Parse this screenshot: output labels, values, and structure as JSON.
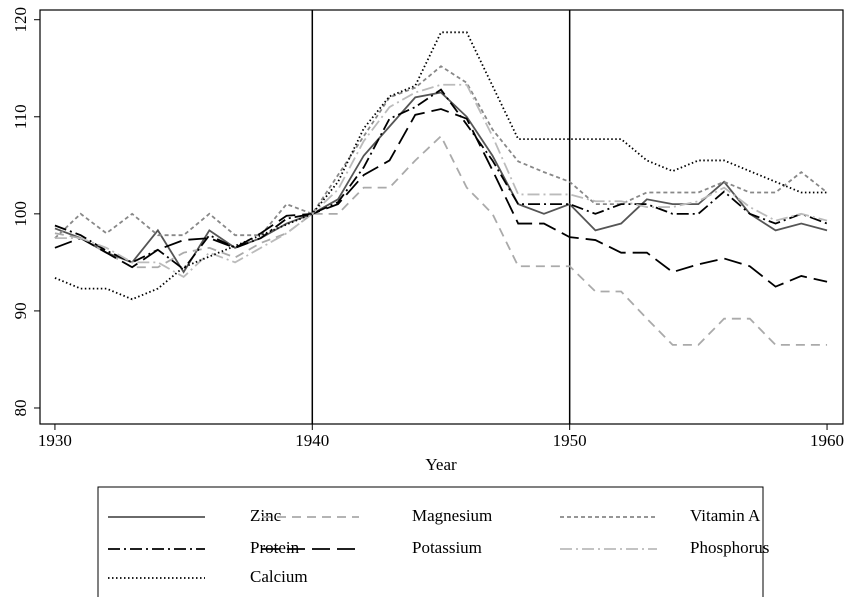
{
  "chart_data": {
    "type": "line",
    "x_label": "Year",
    "x": [
      1930,
      1931,
      1932,
      1933,
      1934,
      1935,
      1936,
      1937,
      1938,
      1939,
      1940,
      1941,
      1942,
      1943,
      1944,
      1945,
      1946,
      1947,
      1948,
      1949,
      1950,
      1951,
      1952,
      1953,
      1954,
      1955,
      1956,
      1957,
      1958,
      1959,
      1960
    ],
    "xlim": [
      1929.42,
      1960.62
    ],
    "xticks": [
      1930,
      1940,
      1950,
      1960
    ],
    "ylim": [
      78.35,
      121
    ],
    "yticks": [
      80,
      90,
      100,
      110,
      120
    ],
    "vlines": [
      1940,
      1950
    ],
    "legend": "bottom",
    "grid": false,
    "series": [
      {
        "name": "Zinc",
        "color": "#555555",
        "dash": "solid",
        "values": [
          98.5,
          97.5,
          96,
          95,
          98.3,
          94,
          98.3,
          96.5,
          97.5,
          99,
          100,
          101.5,
          106,
          109,
          112,
          112.5,
          110,
          106,
          101,
          100,
          101,
          98.3,
          99,
          101.5,
          101,
          101,
          103.3,
          100,
          98.3,
          99,
          98.3
        ]
      },
      {
        "name": "Magnesium",
        "color": "#aaaaaa",
        "dash": "dash",
        "values": [
          98,
          97.5,
          96,
          94.5,
          94.5,
          96,
          96.5,
          95.5,
          97,
          98,
          100,
          100,
          102.7,
          102.7,
          105.5,
          108,
          102.7,
          100,
          94.6,
          94.6,
          94.6,
          92,
          92,
          89.2,
          86.5,
          86.5,
          89.2,
          89.2,
          86.5,
          86.5,
          86.5
        ]
      },
      {
        "name": "Vitamin A",
        "color": "#888888",
        "dash": "short-dash",
        "values": [
          97.5,
          100,
          98,
          100,
          97.8,
          97.8,
          100,
          97.8,
          97.8,
          101,
          100,
          104,
          108,
          112,
          113,
          115.2,
          113.5,
          108.7,
          105.4,
          104.3,
          103.3,
          101,
          101,
          102.2,
          102.2,
          102.2,
          103.3,
          102.2,
          102.2,
          104.3,
          102.2
        ]
      },
      {
        "name": "Protein",
        "color": "#000000",
        "dash": "dash-dot",
        "values": [
          98.8,
          97.8,
          96.2,
          95,
          96.3,
          94.3,
          97.8,
          96.5,
          97.5,
          99.5,
          100,
          101.2,
          104.8,
          109.8,
          111,
          112.8,
          109.2,
          105.5,
          101,
          101,
          101,
          100,
          101,
          101,
          100,
          100,
          102.3,
          100,
          99,
          100,
          99
        ]
      },
      {
        "name": "Potassium",
        "color": "#000000",
        "dash": "long-dash",
        "values": [
          96.5,
          97.5,
          96,
          94.5,
          96.3,
          97.3,
          97.5,
          96.5,
          98,
          99.8,
          100,
          101,
          104,
          105.5,
          110.2,
          110.8,
          109.8,
          104.5,
          99,
          99,
          97.6,
          97.3,
          96,
          96,
          94,
          94.8,
          95.4,
          94.6,
          92.5,
          93.6,
          93
        ]
      },
      {
        "name": "Phosphorus",
        "color": "#bbbbbb",
        "dash": "dash-dot",
        "values": [
          97.5,
          97.5,
          96.5,
          95,
          95,
          93.5,
          96,
          95,
          96.5,
          98,
          100,
          102.5,
          107.5,
          111,
          112.5,
          113.3,
          113.3,
          108,
          102,
          102,
          102,
          101.3,
          101.3,
          100.7,
          100.7,
          101.3,
          102.7,
          100.7,
          99.3,
          100,
          99.3
        ]
      },
      {
        "name": "Calcium",
        "color": "#000000",
        "dash": "dot",
        "values": [
          93.4,
          92.3,
          92.3,
          91.2,
          92.3,
          94.5,
          95.6,
          96.7,
          97.8,
          98.9,
          100,
          103.3,
          108.8,
          112.1,
          113.2,
          118.7,
          118.7,
          113.2,
          107.7,
          107.7,
          107.7,
          107.7,
          107.7,
          105.5,
          104.4,
          105.5,
          105.5,
          104.4,
          103.3,
          102.2,
          102.2
        ]
      }
    ]
  }
}
